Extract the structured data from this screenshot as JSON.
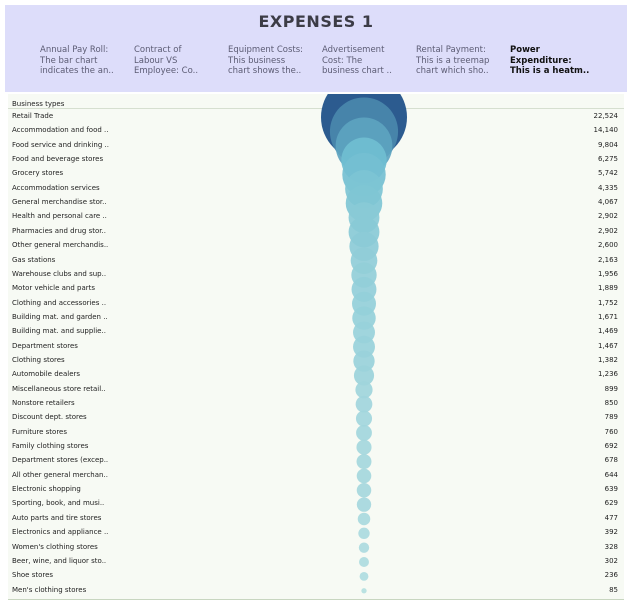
{
  "title": "EXPENSES 1",
  "tabs": [
    {
      "line1": "Annual Pay Roll:",
      "line2": "The bar chart",
      "line3": "indicates the an..",
      "active": false
    },
    {
      "line1": "Contract of",
      "line2": "Labour VS",
      "line3": "Employee:   Co..",
      "active": false
    },
    {
      "line1": "Equipment Costs:",
      "line2": "This business",
      "line3": "chart shows the..",
      "active": false
    },
    {
      "line1": "Advertisement",
      "line2": "Cost:       The",
      "line3": "business chart ..",
      "active": false
    },
    {
      "line1": "Rental Payment:",
      "line2": "This is a treemap",
      "line3": "chart which sho..",
      "active": false
    },
    {
      "line1": "Power",
      "line2": "Expenditure:",
      "line3": "This is a heatm..",
      "active": true
    }
  ],
  "chart_data": {
    "type": "bubble",
    "header_label": "Business types",
    "categories": [
      "Retail Trade",
      "Accommodation and food ..",
      "Food service and drinking ..",
      "Food and beverage stores",
      "Grocery stores",
      "Accommodation services",
      "General merchandise stor..",
      "Health and personal care ..",
      "Pharmacies and drug stor..",
      "Other general merchandis..",
      "Gas stations",
      "Warehouse clubs and sup..",
      "Motor vehicle and parts",
      "Clothing and accessories ..",
      "Building mat. and garden ..",
      "Building mat. and supplie..",
      "Department stores",
      "Clothing stores",
      "Automobile dealers",
      "Miscellaneous store retail..",
      "Nonstore retailers",
      "Discount dept. stores",
      "Furniture stores",
      "Family clothing stores",
      "Department stores (excep..",
      "All other general merchan..",
      "Electronic shopping",
      "Sporting, book, and musi..",
      "Auto parts and tire stores",
      "Electronics and appliance ..",
      "Women's clothing stores",
      "Beer, wine, and liquor sto..",
      "Shoe stores",
      "Men's clothing stores"
    ],
    "values": [
      22524,
      14140,
      9804,
      6275,
      5742,
      4335,
      4067,
      2902,
      2902,
      2600,
      2163,
      1956,
      1889,
      1752,
      1671,
      1469,
      1467,
      1382,
      1236,
      899,
      850,
      789,
      760,
      692,
      678,
      644,
      639,
      629,
      477,
      392,
      328,
      302,
      236,
      85
    ],
    "value_labels": [
      "22,524",
      "14,140",
      "9,804",
      "6,275",
      "5,742",
      "4,335",
      "4,067",
      "2,902",
      "2,902",
      "2,600",
      "2,163",
      "1,956",
      "1,889",
      "1,752",
      "1,671",
      "1,469",
      "1,467",
      "1,382",
      "1,236",
      "899",
      "850",
      "789",
      "760",
      "692",
      "678",
      "644",
      "639",
      "629",
      "477",
      "392",
      "328",
      "302",
      "236",
      "85"
    ],
    "colors": {
      "max": "#2c5b8f",
      "mid": "#6dbcd0",
      "min": "#bde3e2"
    }
  }
}
